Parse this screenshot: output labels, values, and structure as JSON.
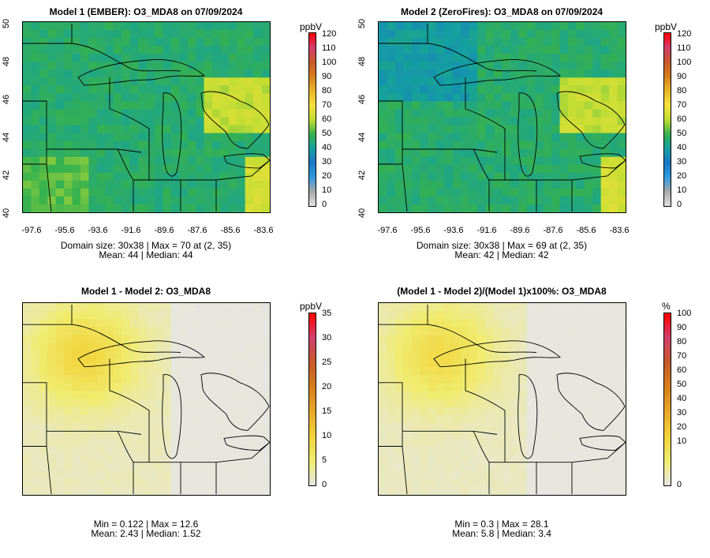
{
  "panels": [
    {
      "title": "Model 1 (EMBER): O3_MDA8 on 07/09/2024",
      "unit": "ppbV",
      "lat_labels": [
        "50",
        "48",
        "46",
        "44",
        "42",
        "40"
      ],
      "lon_labels": [
        "-97.6",
        "-95.6",
        "-93.6",
        "-91.6",
        "-89.6",
        "-87.6",
        "-85.6",
        "-83.6"
      ],
      "colorbar_labels": [
        "120",
        "110",
        "100",
        "90",
        "80",
        "70",
        "60",
        "50",
        "40",
        "30",
        "20",
        "10",
        "0"
      ],
      "stats_line1": "Domain size: 30x38 | Max = 70 at (2, 35)",
      "stats_line2": "Mean: 44 |  Median: 44"
    },
    {
      "title": "Model 2 (ZeroFires): O3_MDA8 on 07/09/2024",
      "unit": "ppbV",
      "lat_labels": [
        "50",
        "48",
        "46",
        "44",
        "42",
        "40"
      ],
      "lon_labels": [
        "-97.6",
        "-95.6",
        "-93.6",
        "-91.6",
        "-89.6",
        "-87.6",
        "-85.6",
        "-83.6"
      ],
      "colorbar_labels": [
        "120",
        "110",
        "100",
        "90",
        "80",
        "70",
        "60",
        "50",
        "40",
        "30",
        "20",
        "10",
        "0"
      ],
      "stats_line1": "Domain size: 30x38 | Max = 69 at (2, 35)",
      "stats_line2": "Mean: 42 |  Median: 42"
    },
    {
      "title": "Model 1 - Model 2: O3_MDA8",
      "unit": "ppbV",
      "colorbar_labels": [
        "35",
        "30",
        "25",
        "20",
        "15",
        "10",
        "5",
        "0"
      ],
      "stats_line1": "Min = 0.122 | Max = 12.6",
      "stats_line2": "Mean: 2.43 |  Median: 1.52"
    },
    {
      "title": "(Model 1 - Model 2)/(Model 1)x100%: O3_MDA8",
      "unit": "%",
      "colorbar_labels": [
        "100",
        "90",
        "80",
        "70",
        "60",
        "50",
        "40",
        "30",
        "20",
        "10",
        "0"
      ],
      "stats_line1": "Min = 0.3 | Max = 28.1",
      "stats_line2": "Mean: 5.8 |  Median: 3.4"
    }
  ],
  "colors": {
    "ozone_scale": [
      "#e4e4e4",
      "#a8a8a8",
      "#2f9be0",
      "#1878c8",
      "#14a0a0",
      "#37b24d",
      "#c3dd33",
      "#f5e13a",
      "#e9b52a",
      "#d67f1c",
      "#c85a2a",
      "#d23c6e",
      "#ff0000"
    ],
    "diff_scale": [
      "#e6e6e6",
      "#f0ec70",
      "#f1d33a",
      "#e7a829",
      "#d77f1c",
      "#c65a2c",
      "#d0406c",
      "#ff0000"
    ],
    "map_line": "#000000"
  }
}
